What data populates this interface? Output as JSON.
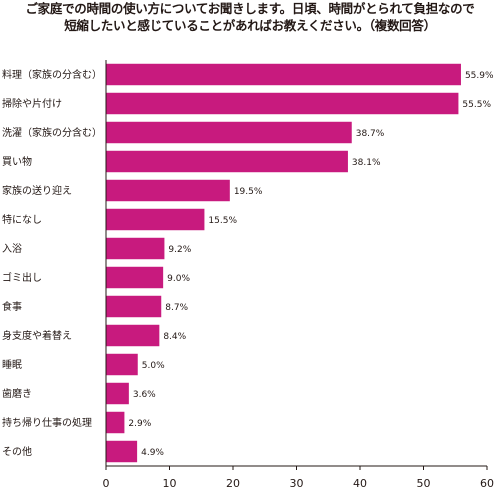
{
  "chart_data": {
    "type": "bar",
    "orientation": "horizontal",
    "title": "ご家庭での時間の使い方についてお聞きします。日頃、時間がとられて負担なので短縮したいと感じていることがあればお教えください。（複数回答）",
    "title_lines": [
      "ご家庭での時間の使い方についてお聞きします。日頃、時間がとられて負担なので",
      "短縮したいと感じていることがあればお教えください。（複数回答）"
    ],
    "categories": [
      "料理（家族の分含む）",
      "掃除や片付け",
      "洗濯（家族の分含む）",
      "買い物",
      "家族の送り迎え",
      "特になし",
      "入浴",
      "ゴミ出し",
      "食事",
      "身支度や着替え",
      "睡眠",
      "歯磨き",
      "持ち帰り仕事の処理",
      "その他"
    ],
    "values": [
      55.9,
      55.5,
      38.7,
      38.1,
      19.5,
      15.5,
      9.2,
      9.0,
      8.7,
      8.4,
      5.0,
      3.6,
      2.9,
      4.9
    ],
    "value_labels": [
      "55.9%",
      "55.5%",
      "38.7%",
      "38.1%",
      "19.5%",
      "15.5%",
      "9.2%",
      "9.0%",
      "8.7%",
      "8.4%",
      "5.0%",
      "3.6%",
      "2.9%",
      "4.9%"
    ],
    "xlim": [
      0,
      60
    ],
    "xticks": [
      "0",
      "10",
      "20",
      "30",
      "40",
      "50",
      "60"
    ],
    "xlabel": "",
    "ylabel": "",
    "grid": false,
    "bar_color": "#c81a7e"
  }
}
